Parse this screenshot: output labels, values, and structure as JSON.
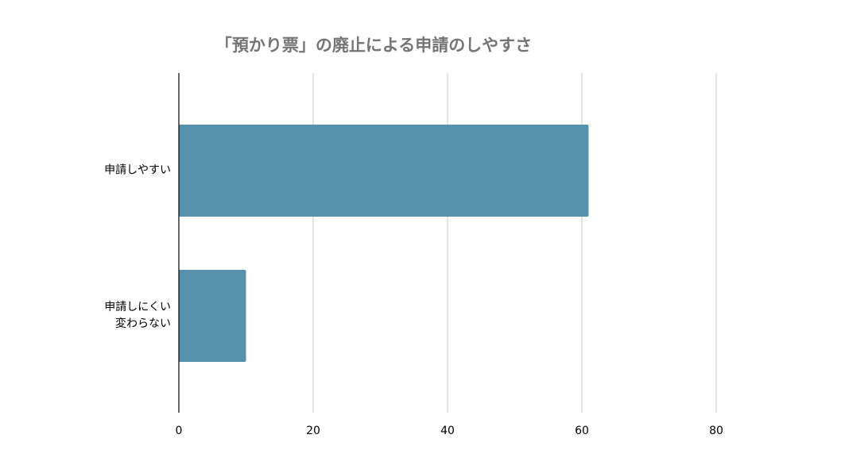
{
  "chart_data": {
    "type": "bar",
    "orientation": "horizontal",
    "title": "「預かり票」の廃止による申請のしやすさ",
    "categories": [
      "申請しやすい",
      "申請しにくい\n変わらない"
    ],
    "values": [
      61,
      10
    ],
    "color": "#5891ad",
    "xlim": [
      0,
      80
    ],
    "xticks": [
      0,
      20,
      40,
      60,
      80
    ],
    "grid": true
  }
}
